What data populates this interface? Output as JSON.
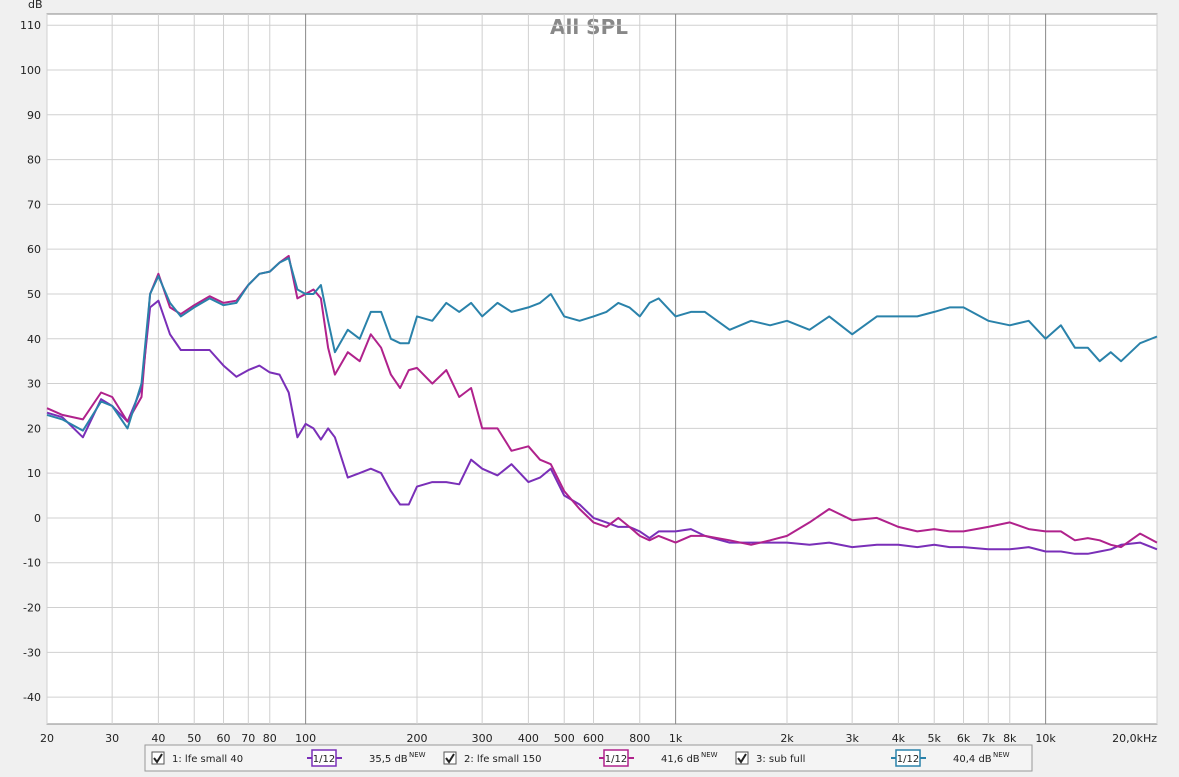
{
  "chart_data": {
    "type": "line",
    "title": "All SPL",
    "y_label": "dB",
    "log_x": true,
    "grid": true,
    "xlim": [
      20,
      20000
    ],
    "ylim": [
      -46,
      112.5
    ],
    "xticks": [
      20,
      30,
      40,
      50,
      60,
      70,
      80,
      100,
      200,
      300,
      400,
      500,
      600,
      800,
      {
        "value": 1000,
        "label": "1k"
      },
      {
        "value": 2000,
        "label": "2k"
      },
      {
        "value": 3000,
        "label": "3k"
      },
      {
        "value": 4000,
        "label": "4k"
      },
      {
        "value": 5000,
        "label": "5k"
      },
      {
        "value": 6000,
        "label": "6k"
      },
      {
        "value": 7000,
        "label": "7k"
      },
      {
        "value": 8000,
        "label": "8k"
      },
      {
        "value": 10000,
        "label": "10k"
      },
      {
        "value": 20000,
        "label": "20,0kHz"
      }
    ],
    "yticks": [
      110,
      100,
      90,
      80,
      70,
      60,
      50,
      40,
      30,
      20,
      10,
      0,
      -10,
      -20,
      -30,
      -40
    ],
    "x": [
      20,
      22,
      25,
      28,
      30,
      33,
      36,
      38,
      40,
      43,
      46,
      50,
      55,
      60,
      65,
      70,
      75,
      80,
      85,
      90,
      95,
      100,
      105,
      110,
      115,
      120,
      130,
      140,
      150,
      160,
      170,
      180,
      190,
      200,
      220,
      240,
      260,
      280,
      300,
      330,
      360,
      400,
      430,
      460,
      500,
      550,
      600,
      650,
      700,
      750,
      800,
      850,
      900,
      1000,
      1100,
      1200,
      1400,
      1600,
      1800,
      2000,
      2300,
      2600,
      3000,
      3500,
      4000,
      4500,
      5000,
      5500,
      6000,
      7000,
      8000,
      9000,
      10000,
      11000,
      12000,
      13000,
      14000,
      15000,
      16000,
      18000,
      20000
    ],
    "series": [
      {
        "name": "1: lfe small 40",
        "color": "#7a2fb8",
        "smoothing": "1/12",
        "level": "35,5 dB",
        "level_tag": "NEW",
        "values": [
          23.5,
          22.5,
          18,
          26.5,
          25,
          21.5,
          29,
          47,
          48.5,
          41,
          37.5,
          37.5,
          37.5,
          34,
          31.5,
          33,
          34,
          32.5,
          32,
          28,
          18,
          21,
          20,
          17.5,
          20,
          18,
          9,
          10,
          11,
          10,
          6,
          3,
          3,
          7,
          8,
          8,
          7.5,
          13,
          11,
          9.5,
          12,
          8,
          9,
          11,
          5,
          3,
          0,
          -1,
          -2,
          -2,
          -3,
          -4.5,
          -3,
          -3,
          -2.5,
          -4,
          -5.5,
          -5.5,
          -5.5,
          -5.5,
          -6,
          -5.5,
          -6.5,
          -6,
          -6,
          -6.5,
          -6,
          -6.5,
          -6.5,
          -7,
          -7,
          -6.5,
          -7.5,
          -7.5,
          -8,
          -8,
          -7.5,
          -7,
          -6,
          -5.5,
          -7
        ]
      },
      {
        "name": "2: lfe small 150",
        "color": "#b0228c",
        "smoothing": "1/12",
        "level": "41,6 dB",
        "level_tag": "NEW",
        "values": [
          24.5,
          23,
          22,
          28,
          27,
          21.5,
          27,
          50,
          54.5,
          47,
          45.5,
          47.5,
          49.5,
          48,
          48.5,
          52,
          54.5,
          55,
          57,
          58.5,
          49,
          50,
          51,
          49,
          38,
          32,
          37,
          35,
          41,
          38,
          32,
          29,
          33,
          33.5,
          30,
          33,
          27,
          29,
          20,
          20,
          15,
          16,
          13,
          12,
          6,
          2,
          -1,
          -2,
          0,
          -2,
          -4,
          -5,
          -4,
          -5.5,
          -4,
          -4,
          -5,
          -6,
          -5,
          -4,
          -1,
          2,
          -0.5,
          0,
          -2,
          -3,
          -2.5,
          -3,
          -3,
          -2,
          -1,
          -2.5,
          -3,
          -3,
          -5,
          -4.5,
          -5,
          -6,
          -6.5,
          -3.5,
          -5.5
        ]
      },
      {
        "name": "3: sub full",
        "color": "#2a82aa",
        "smoothing": "1/12",
        "level": "40,4 dB",
        "level_tag": "NEW",
        "values": [
          23,
          22,
          19.5,
          26,
          25,
          20,
          30,
          50,
          54,
          48,
          45,
          47,
          49,
          47.5,
          48,
          52,
          54.5,
          55,
          57,
          58,
          51,
          50,
          50,
          52,
          44,
          37,
          42,
          40,
          46,
          46,
          40,
          39,
          39,
          45,
          44,
          48,
          46,
          48,
          45,
          48,
          46,
          47,
          48,
          50,
          45,
          44,
          45,
          46,
          48,
          47,
          45,
          48,
          49,
          45,
          46,
          46,
          42,
          44,
          43,
          44,
          42,
          45,
          41,
          45,
          45,
          45,
          46,
          47,
          47,
          44,
          43,
          44,
          40,
          43,
          38,
          38,
          35,
          37,
          35,
          39,
          40.5
        ]
      }
    ]
  }
}
